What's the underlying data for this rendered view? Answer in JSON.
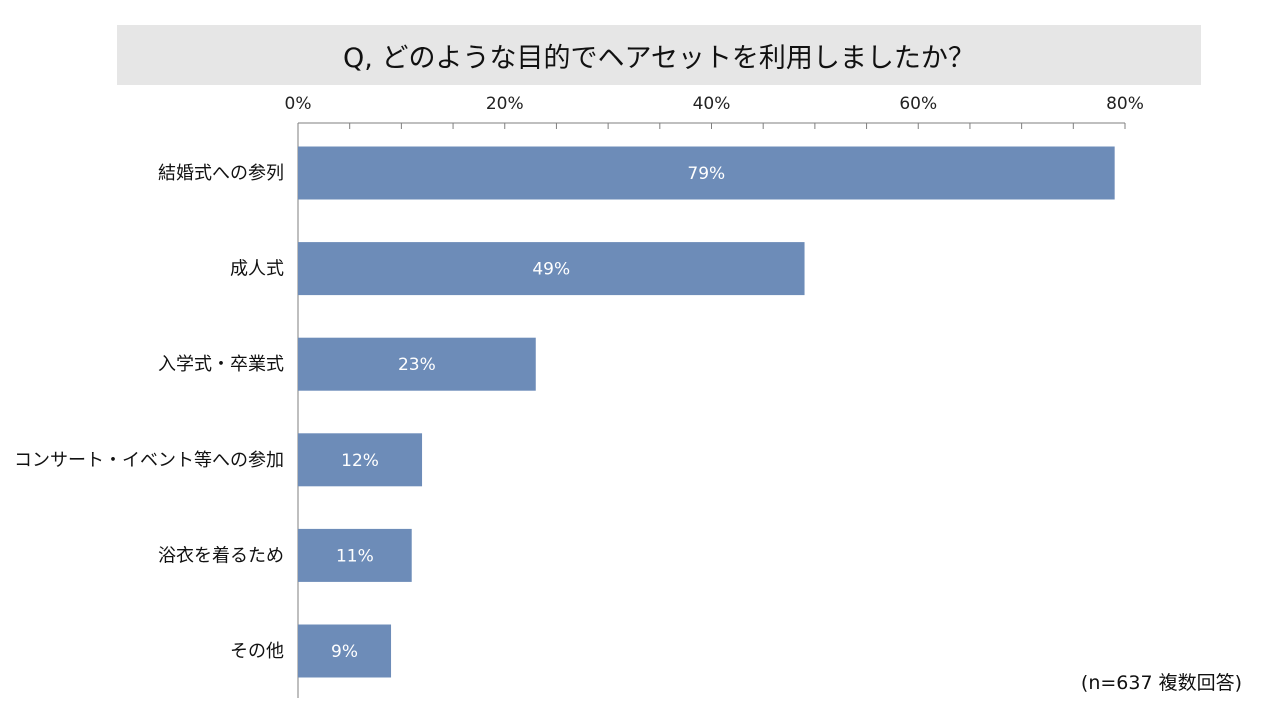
{
  "title": "Q, どのような目的でヘアセットを利用しましたか？",
  "note": "(n=637 複数回答)",
  "chart_data": {
    "type": "bar",
    "orientation": "horizontal",
    "categories": [
      "結婚式への参列",
      "成人式",
      "入学式・卒業式",
      "コンサート・イベント等への参加",
      "浴衣を着るため",
      "その他"
    ],
    "values": [
      79,
      49,
      23,
      12,
      11,
      9
    ],
    "value_labels": [
      "79%",
      "49%",
      "23%",
      "12%",
      "11%",
      "9%"
    ],
    "xlim": [
      0,
      80
    ],
    "xticks": [
      0,
      20,
      40,
      60,
      80
    ],
    "xtick_labels": [
      "0%",
      "20%",
      "40%",
      "60%",
      "80%"
    ],
    "minor_tick_step": 5,
    "axis_position": "top",
    "grid": false,
    "bar_color": "#6d8cb8"
  }
}
